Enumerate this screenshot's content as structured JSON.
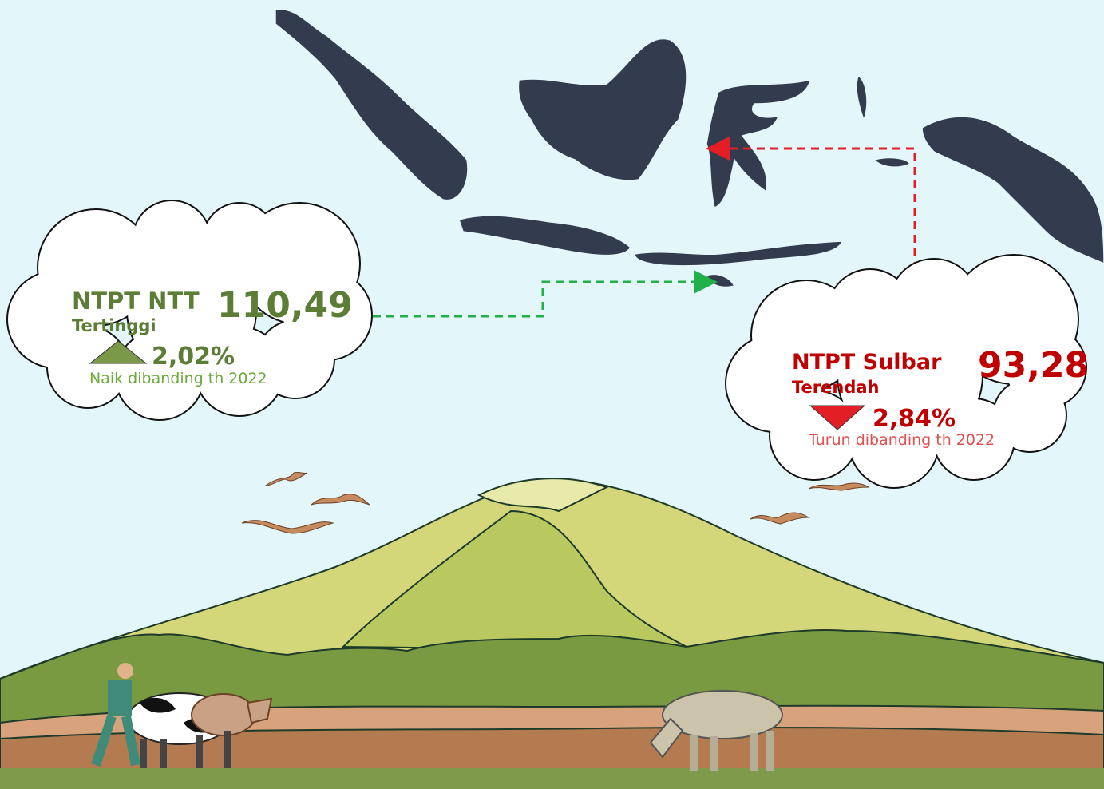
{
  "highest": {
    "label": "NTPT NTT",
    "value": "110,49",
    "rank": "Tertinggi",
    "change": "2,02%",
    "note": "Naik dibanding th 2022"
  },
  "lowest": {
    "label": "NTPT Sulbar",
    "value": "93,28",
    "rank": "Terendah",
    "change": "2,84%",
    "note": "Turun dibanding th 2022"
  }
}
